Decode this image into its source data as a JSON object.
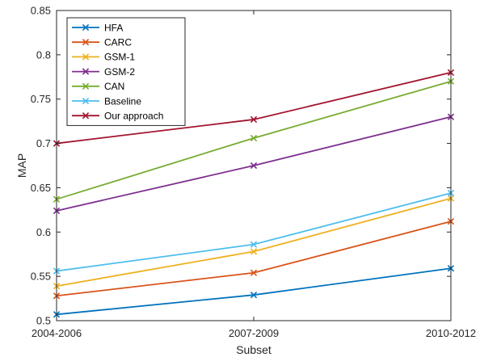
{
  "chart_data": {
    "type": "line",
    "title": "",
    "xlabel": "Subset",
    "ylabel": "MAP",
    "categories": [
      "2004-2006",
      "2007-2009",
      "2010-2012"
    ],
    "ylim": [
      0.5,
      0.85
    ],
    "yticks": [
      "0.5",
      "0.55",
      "0.6",
      "0.65",
      "0.7",
      "0.75",
      "0.8",
      "0.85"
    ],
    "grid": false,
    "legend_position": "top-left",
    "marker": "x",
    "series": [
      {
        "name": "HFA",
        "color": "#0072BD",
        "values": [
          0.507,
          0.529,
          0.559
        ]
      },
      {
        "name": "CARC",
        "color": "#D95319",
        "values": [
          0.528,
          0.554,
          0.612
        ]
      },
      {
        "name": "GSM-1",
        "color": "#EDB120",
        "values": [
          0.539,
          0.578,
          0.638
        ]
      },
      {
        "name": "GSM-2",
        "color": "#7E2F8E",
        "values": [
          0.624,
          0.675,
          0.73
        ]
      },
      {
        "name": "CAN",
        "color": "#77AC30",
        "values": [
          0.637,
          0.706,
          0.77
        ]
      },
      {
        "name": "Baseline",
        "color": "#4DBEEE",
        "values": [
          0.556,
          0.586,
          0.644
        ]
      },
      {
        "name": "Our approach",
        "color": "#A2142F",
        "values": [
          0.7,
          0.727,
          0.78
        ]
      }
    ]
  }
}
